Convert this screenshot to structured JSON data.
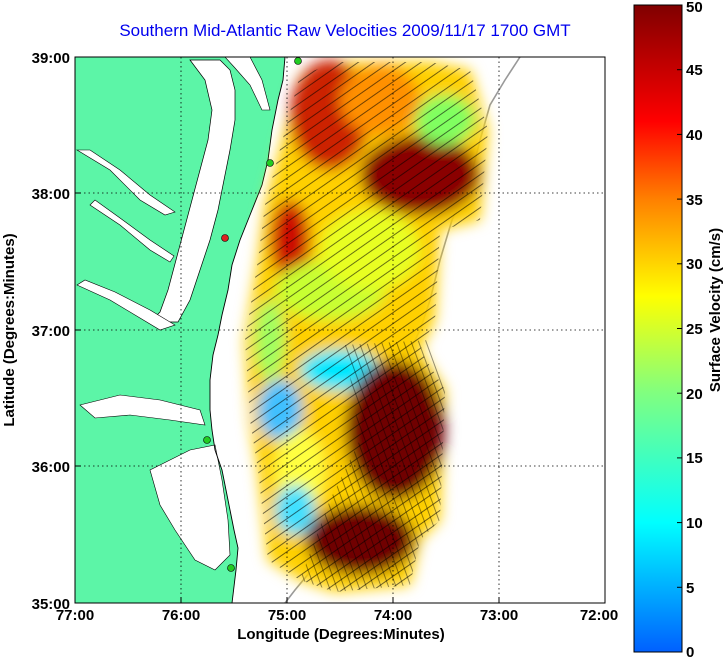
{
  "title": "Southern Mid-Atlantic Raw Velocities 2009/11/17 1700 GMT",
  "map": {
    "xlabel": "Longitude (Degrees:Minutes)",
    "ylabel": "Latitude (Degrees:Minutes)",
    "lon_range": [
      -77,
      -72
    ],
    "lat_range": [
      35,
      39
    ],
    "x_ticks": [
      "77:00",
      "76:00",
      "75:00",
      "74:00",
      "73:00",
      "72:00"
    ],
    "y_ticks": [
      "35:00",
      "36:00",
      "37:00",
      "38:00",
      "39:00"
    ],
    "land_color": "#5cf5a7",
    "water_color": "#ffffff",
    "grid": "dotted",
    "station_colors": [
      "#22cc22",
      "#dd2222"
    ]
  },
  "colorbar": {
    "label": "Surface Velocity (cm/s)",
    "min": 0,
    "max": 50,
    "ticks": [
      "0",
      "5",
      "10",
      "15",
      "20",
      "25",
      "30",
      "35",
      "40",
      "45",
      "50"
    ],
    "colormap": "jet"
  }
}
